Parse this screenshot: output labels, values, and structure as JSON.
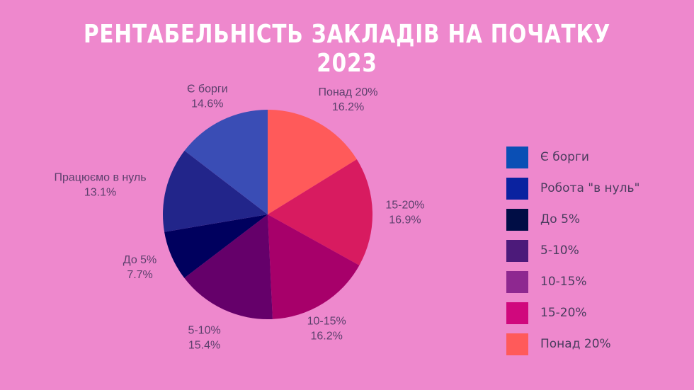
{
  "title": "РЕНТАБЕЛЬНІСТЬ ЗАКЛАДІВ НА ПОЧАТКУ 2023",
  "chart_data": {
    "type": "pie",
    "title": "РЕНТАБЕЛЬНІСТЬ ЗАКЛАДІВ НА ПОЧАТКУ 2023",
    "slices": [
      {
        "label": "Понад 20%",
        "value": 16.2,
        "value_label": "16.2%",
        "color": "#ff5a5a"
      },
      {
        "label": "15-20%",
        "value": 16.9,
        "value_label": "16.9%",
        "color": "#d81b60"
      },
      {
        "label": "10-15%",
        "value": 16.2,
        "value_label": "16.2%",
        "color": "#a7006a"
      },
      {
        "label": "5-10%",
        "value": 15.4,
        "value_label": "15.4%",
        "color": "#65006a"
      },
      {
        "label": "До 5%",
        "value": 7.7,
        "value_label": "7.7%",
        "color": "#00005e"
      },
      {
        "label": "Працюємо в нуль",
        "value": 13.1,
        "value_label": "13.1%",
        "color": "#22258a"
      },
      {
        "label": "Є борги",
        "value": 14.6,
        "value_label": "14.6%",
        "color": "#3a4db5"
      }
    ],
    "legend": {
      "position": "right",
      "items": [
        {
          "label": "Є борги",
          "color": "#0a4fb5"
        },
        {
          "label": "Робота \"в нуль\"",
          "color": "#0a22a0"
        },
        {
          "label": "До 5%",
          "color": "#000d45"
        },
        {
          "label": "5-10%",
          "color": "#4c1a7a"
        },
        {
          "label": "10-15%",
          "color": "#8e2890"
        },
        {
          "label": "15-20%",
          "color": "#d0087d"
        },
        {
          "label": "Понад 20%",
          "color": "#ff5a5a"
        }
      ]
    }
  }
}
